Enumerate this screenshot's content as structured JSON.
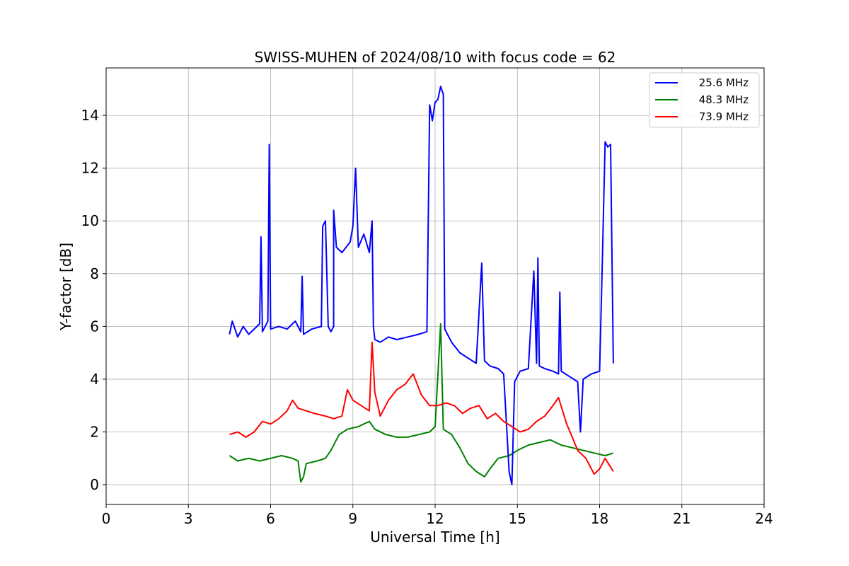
{
  "chart_data": {
    "type": "line",
    "title": "SWISS-MUHEN of 2024/08/10 with focus code = 62",
    "xlabel": "Universal Time [h]",
    "ylabel": "Y-factor [dB]",
    "xlim": [
      0,
      24
    ],
    "ylim": [
      -0.75,
      15.8
    ],
    "xticks": [
      0,
      3,
      6,
      9,
      12,
      15,
      18,
      21,
      24
    ],
    "yticks": [
      0,
      2,
      4,
      6,
      8,
      10,
      12,
      14
    ],
    "grid": true,
    "legend_position": "top-right",
    "series": [
      {
        "name": "25.6 MHz",
        "color": "#0000ff",
        "points": [
          [
            4.5,
            5.7
          ],
          [
            4.6,
            6.2
          ],
          [
            4.8,
            5.6
          ],
          [
            5.0,
            6.0
          ],
          [
            5.2,
            5.7
          ],
          [
            5.4,
            5.9
          ],
          [
            5.6,
            6.1
          ],
          [
            5.65,
            9.4
          ],
          [
            5.7,
            5.8
          ],
          [
            5.9,
            6.2
          ],
          [
            5.95,
            12.9
          ],
          [
            6.0,
            5.9
          ],
          [
            6.3,
            6.0
          ],
          [
            6.6,
            5.9
          ],
          [
            6.9,
            6.2
          ],
          [
            7.1,
            5.8
          ],
          [
            7.15,
            7.9
          ],
          [
            7.2,
            5.7
          ],
          [
            7.5,
            5.9
          ],
          [
            7.85,
            6.0
          ],
          [
            7.9,
            9.8
          ],
          [
            8.0,
            10.0
          ],
          [
            8.1,
            6.0
          ],
          [
            8.2,
            5.8
          ],
          [
            8.3,
            6.0
          ],
          [
            8.3,
            10.4
          ],
          [
            8.4,
            9.0
          ],
          [
            8.6,
            8.8
          ],
          [
            8.9,
            9.2
          ],
          [
            9.0,
            9.8
          ],
          [
            9.1,
            12.0
          ],
          [
            9.2,
            9.0
          ],
          [
            9.4,
            9.5
          ],
          [
            9.6,
            8.8
          ],
          [
            9.7,
            10.0
          ],
          [
            9.75,
            6.0
          ],
          [
            9.8,
            5.5
          ],
          [
            10.0,
            5.4
          ],
          [
            10.3,
            5.6
          ],
          [
            10.6,
            5.5
          ],
          [
            11.0,
            5.6
          ],
          [
            11.4,
            5.7
          ],
          [
            11.7,
            5.8
          ],
          [
            11.8,
            14.4
          ],
          [
            11.9,
            13.8
          ],
          [
            12.0,
            14.5
          ],
          [
            12.1,
            14.6
          ],
          [
            12.2,
            15.1
          ],
          [
            12.3,
            14.8
          ],
          [
            12.35,
            5.9
          ],
          [
            12.6,
            5.4
          ],
          [
            12.9,
            5.0
          ],
          [
            13.2,
            4.8
          ],
          [
            13.5,
            4.6
          ],
          [
            13.7,
            8.4
          ],
          [
            13.8,
            4.7
          ],
          [
            14.0,
            4.5
          ],
          [
            14.3,
            4.4
          ],
          [
            14.5,
            4.2
          ],
          [
            14.7,
            0.5
          ],
          [
            14.8,
            0.0
          ],
          [
            14.9,
            3.9
          ],
          [
            15.1,
            4.3
          ],
          [
            15.4,
            4.4
          ],
          [
            15.6,
            8.1
          ],
          [
            15.7,
            4.6
          ],
          [
            15.75,
            8.6
          ],
          [
            15.8,
            4.5
          ],
          [
            16.0,
            4.4
          ],
          [
            16.3,
            4.3
          ],
          [
            16.5,
            4.2
          ],
          [
            16.55,
            7.3
          ],
          [
            16.6,
            4.3
          ],
          [
            16.9,
            4.1
          ],
          [
            17.2,
            3.9
          ],
          [
            17.3,
            2.0
          ],
          [
            17.4,
            4.0
          ],
          [
            17.7,
            4.2
          ],
          [
            18.0,
            4.3
          ],
          [
            18.1,
            8.5
          ],
          [
            18.2,
            13.0
          ],
          [
            18.3,
            12.8
          ],
          [
            18.4,
            12.9
          ],
          [
            18.5,
            4.6
          ]
        ]
      },
      {
        "name": "48.3 MHz",
        "color": "#008000",
        "points": [
          [
            4.5,
            1.1
          ],
          [
            4.8,
            0.9
          ],
          [
            5.2,
            1.0
          ],
          [
            5.6,
            0.9
          ],
          [
            6.0,
            1.0
          ],
          [
            6.4,
            1.1
          ],
          [
            6.8,
            1.0
          ],
          [
            7.0,
            0.9
          ],
          [
            7.1,
            0.1
          ],
          [
            7.2,
            0.3
          ],
          [
            7.3,
            0.8
          ],
          [
            7.7,
            0.9
          ],
          [
            8.0,
            1.0
          ],
          [
            8.2,
            1.3
          ],
          [
            8.5,
            1.9
          ],
          [
            8.8,
            2.1
          ],
          [
            9.2,
            2.2
          ],
          [
            9.6,
            2.4
          ],
          [
            9.8,
            2.1
          ],
          [
            10.2,
            1.9
          ],
          [
            10.6,
            1.8
          ],
          [
            11.0,
            1.8
          ],
          [
            11.4,
            1.9
          ],
          [
            11.8,
            2.0
          ],
          [
            12.0,
            2.2
          ],
          [
            12.2,
            6.1
          ],
          [
            12.3,
            2.1
          ],
          [
            12.6,
            1.9
          ],
          [
            12.9,
            1.4
          ],
          [
            13.2,
            0.8
          ],
          [
            13.5,
            0.5
          ],
          [
            13.8,
            0.3
          ],
          [
            14.0,
            0.6
          ],
          [
            14.3,
            1.0
          ],
          [
            14.7,
            1.1
          ],
          [
            15.0,
            1.3
          ],
          [
            15.4,
            1.5
          ],
          [
            15.8,
            1.6
          ],
          [
            16.2,
            1.7
          ],
          [
            16.6,
            1.5
          ],
          [
            17.0,
            1.4
          ],
          [
            17.4,
            1.3
          ],
          [
            17.8,
            1.2
          ],
          [
            18.2,
            1.1
          ],
          [
            18.5,
            1.2
          ]
        ]
      },
      {
        "name": "73.9 MHz",
        "color": "#ff0000",
        "points": [
          [
            4.5,
            1.9
          ],
          [
            4.8,
            2.0
          ],
          [
            5.1,
            1.8
          ],
          [
            5.4,
            2.0
          ],
          [
            5.7,
            2.4
          ],
          [
            6.0,
            2.3
          ],
          [
            6.3,
            2.5
          ],
          [
            6.6,
            2.8
          ],
          [
            6.8,
            3.2
          ],
          [
            7.0,
            2.9
          ],
          [
            7.3,
            2.8
          ],
          [
            7.6,
            2.7
          ],
          [
            8.0,
            2.6
          ],
          [
            8.3,
            2.5
          ],
          [
            8.6,
            2.6
          ],
          [
            8.8,
            3.6
          ],
          [
            9.0,
            3.2
          ],
          [
            9.3,
            3.0
          ],
          [
            9.6,
            2.8
          ],
          [
            9.7,
            5.4
          ],
          [
            9.8,
            3.5
          ],
          [
            10.0,
            2.6
          ],
          [
            10.3,
            3.2
          ],
          [
            10.6,
            3.6
          ],
          [
            10.9,
            3.8
          ],
          [
            11.2,
            4.2
          ],
          [
            11.5,
            3.4
          ],
          [
            11.8,
            3.0
          ],
          [
            12.1,
            3.0
          ],
          [
            12.4,
            3.1
          ],
          [
            12.7,
            3.0
          ],
          [
            13.0,
            2.7
          ],
          [
            13.3,
            2.9
          ],
          [
            13.6,
            3.0
          ],
          [
            13.9,
            2.5
          ],
          [
            14.2,
            2.7
          ],
          [
            14.5,
            2.4
          ],
          [
            14.8,
            2.2
          ],
          [
            15.1,
            2.0
          ],
          [
            15.4,
            2.1
          ],
          [
            15.7,
            2.4
          ],
          [
            16.0,
            2.6
          ],
          [
            16.3,
            3.0
          ],
          [
            16.5,
            3.3
          ],
          [
            16.8,
            2.3
          ],
          [
            17.0,
            1.8
          ],
          [
            17.2,
            1.3
          ],
          [
            17.5,
            1.0
          ],
          [
            17.8,
            0.4
          ],
          [
            18.0,
            0.6
          ],
          [
            18.2,
            1.0
          ],
          [
            18.5,
            0.5
          ]
        ]
      }
    ]
  }
}
